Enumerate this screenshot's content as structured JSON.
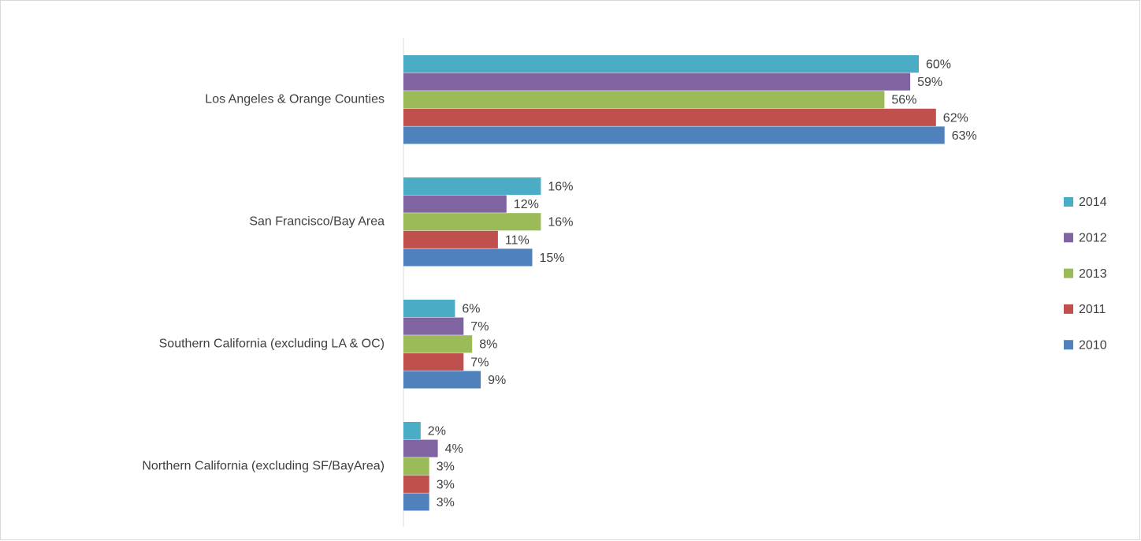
{
  "chart_data": {
    "type": "bar",
    "orientation": "horizontal",
    "categories": [
      "Los Angeles & Orange Counties",
      "San Francisco/Bay Area",
      "Southern California (excluding LA & OC)",
      "Northern California (excluding SF/BayArea)"
    ],
    "series": [
      {
        "name": "2014",
        "color": "#4bacc6",
        "values": [
          60,
          16,
          6,
          2
        ],
        "value_labels": [
          "60%",
          "16%",
          "6%",
          "2%"
        ]
      },
      {
        "name": "2012",
        "color": "#8064a2",
        "values": [
          59,
          12,
          7,
          4
        ],
        "value_labels": [
          "59%",
          "12%",
          "7%",
          "4%"
        ]
      },
      {
        "name": "2013",
        "color": "#9bbb59",
        "values": [
          56,
          16,
          8,
          3
        ],
        "value_labels": [
          "56%",
          "16%",
          "8%",
          "3%"
        ]
      },
      {
        "name": "2011",
        "color": "#c0504d",
        "values": [
          62,
          11,
          7,
          3
        ],
        "value_labels": [
          "62%",
          "11%",
          "7%",
          "3%"
        ]
      },
      {
        "name": "2010",
        "color": "#4f81bd",
        "values": [
          63,
          15,
          9,
          3
        ],
        "value_labels": [
          "63%",
          "15%",
          "9%",
          "3%"
        ]
      }
    ],
    "legend": "right"
  }
}
